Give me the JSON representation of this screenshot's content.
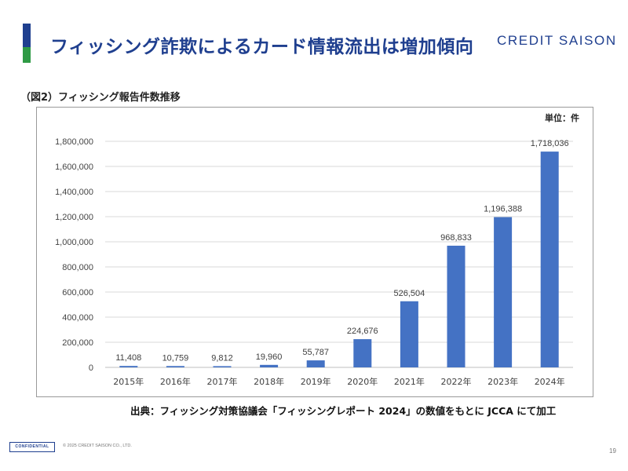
{
  "header": {
    "title": "フィッシング詐欺によるカード情報流出は増加傾向",
    "logo": "CREDIT SAISON",
    "accent_colors": {
      "top": "#1f3f8f",
      "bottom": "#2e9a45"
    }
  },
  "figure": {
    "caption": "（図2）フィッシング報告件数推移",
    "unit": "単位：件",
    "source": "出典：フィッシング対策協議会「フィッシングレポート 2024」の数値をもとに JCCA にて加工"
  },
  "chart_data": {
    "type": "bar",
    "title": "",
    "xlabel": "",
    "ylabel": "",
    "categories": [
      "2015年",
      "2016年",
      "2017年",
      "2018年",
      "2019年",
      "2020年",
      "2021年",
      "2022年",
      "2023年",
      "2024年"
    ],
    "values": [
      11408,
      10759,
      9812,
      19960,
      55787,
      224676,
      526504,
      968833,
      1196388,
      1718036
    ],
    "value_labels": [
      "11,408",
      "10,759",
      "9,812",
      "19,960",
      "55,787",
      "224,676",
      "526,504",
      "968,833",
      "1,196,388",
      "1,718,036"
    ],
    "ylim": [
      0,
      1800000
    ],
    "yticks": [
      0,
      200000,
      400000,
      600000,
      800000,
      1000000,
      1200000,
      1400000,
      1600000,
      1800000
    ],
    "ytick_labels": [
      "0",
      "200,000",
      "400,000",
      "600,000",
      "800,000",
      "1,000,000",
      "1,200,000",
      "1,400,000",
      "1,600,000",
      "1,800,000"
    ],
    "bar_color": "#4472c4",
    "grid": true,
    "legend": "none"
  },
  "footer": {
    "confidential": "CONFIDENTIAL",
    "copyright": "© 2025 CREDIT SAISON CO., LTD.",
    "page_number": "19"
  }
}
